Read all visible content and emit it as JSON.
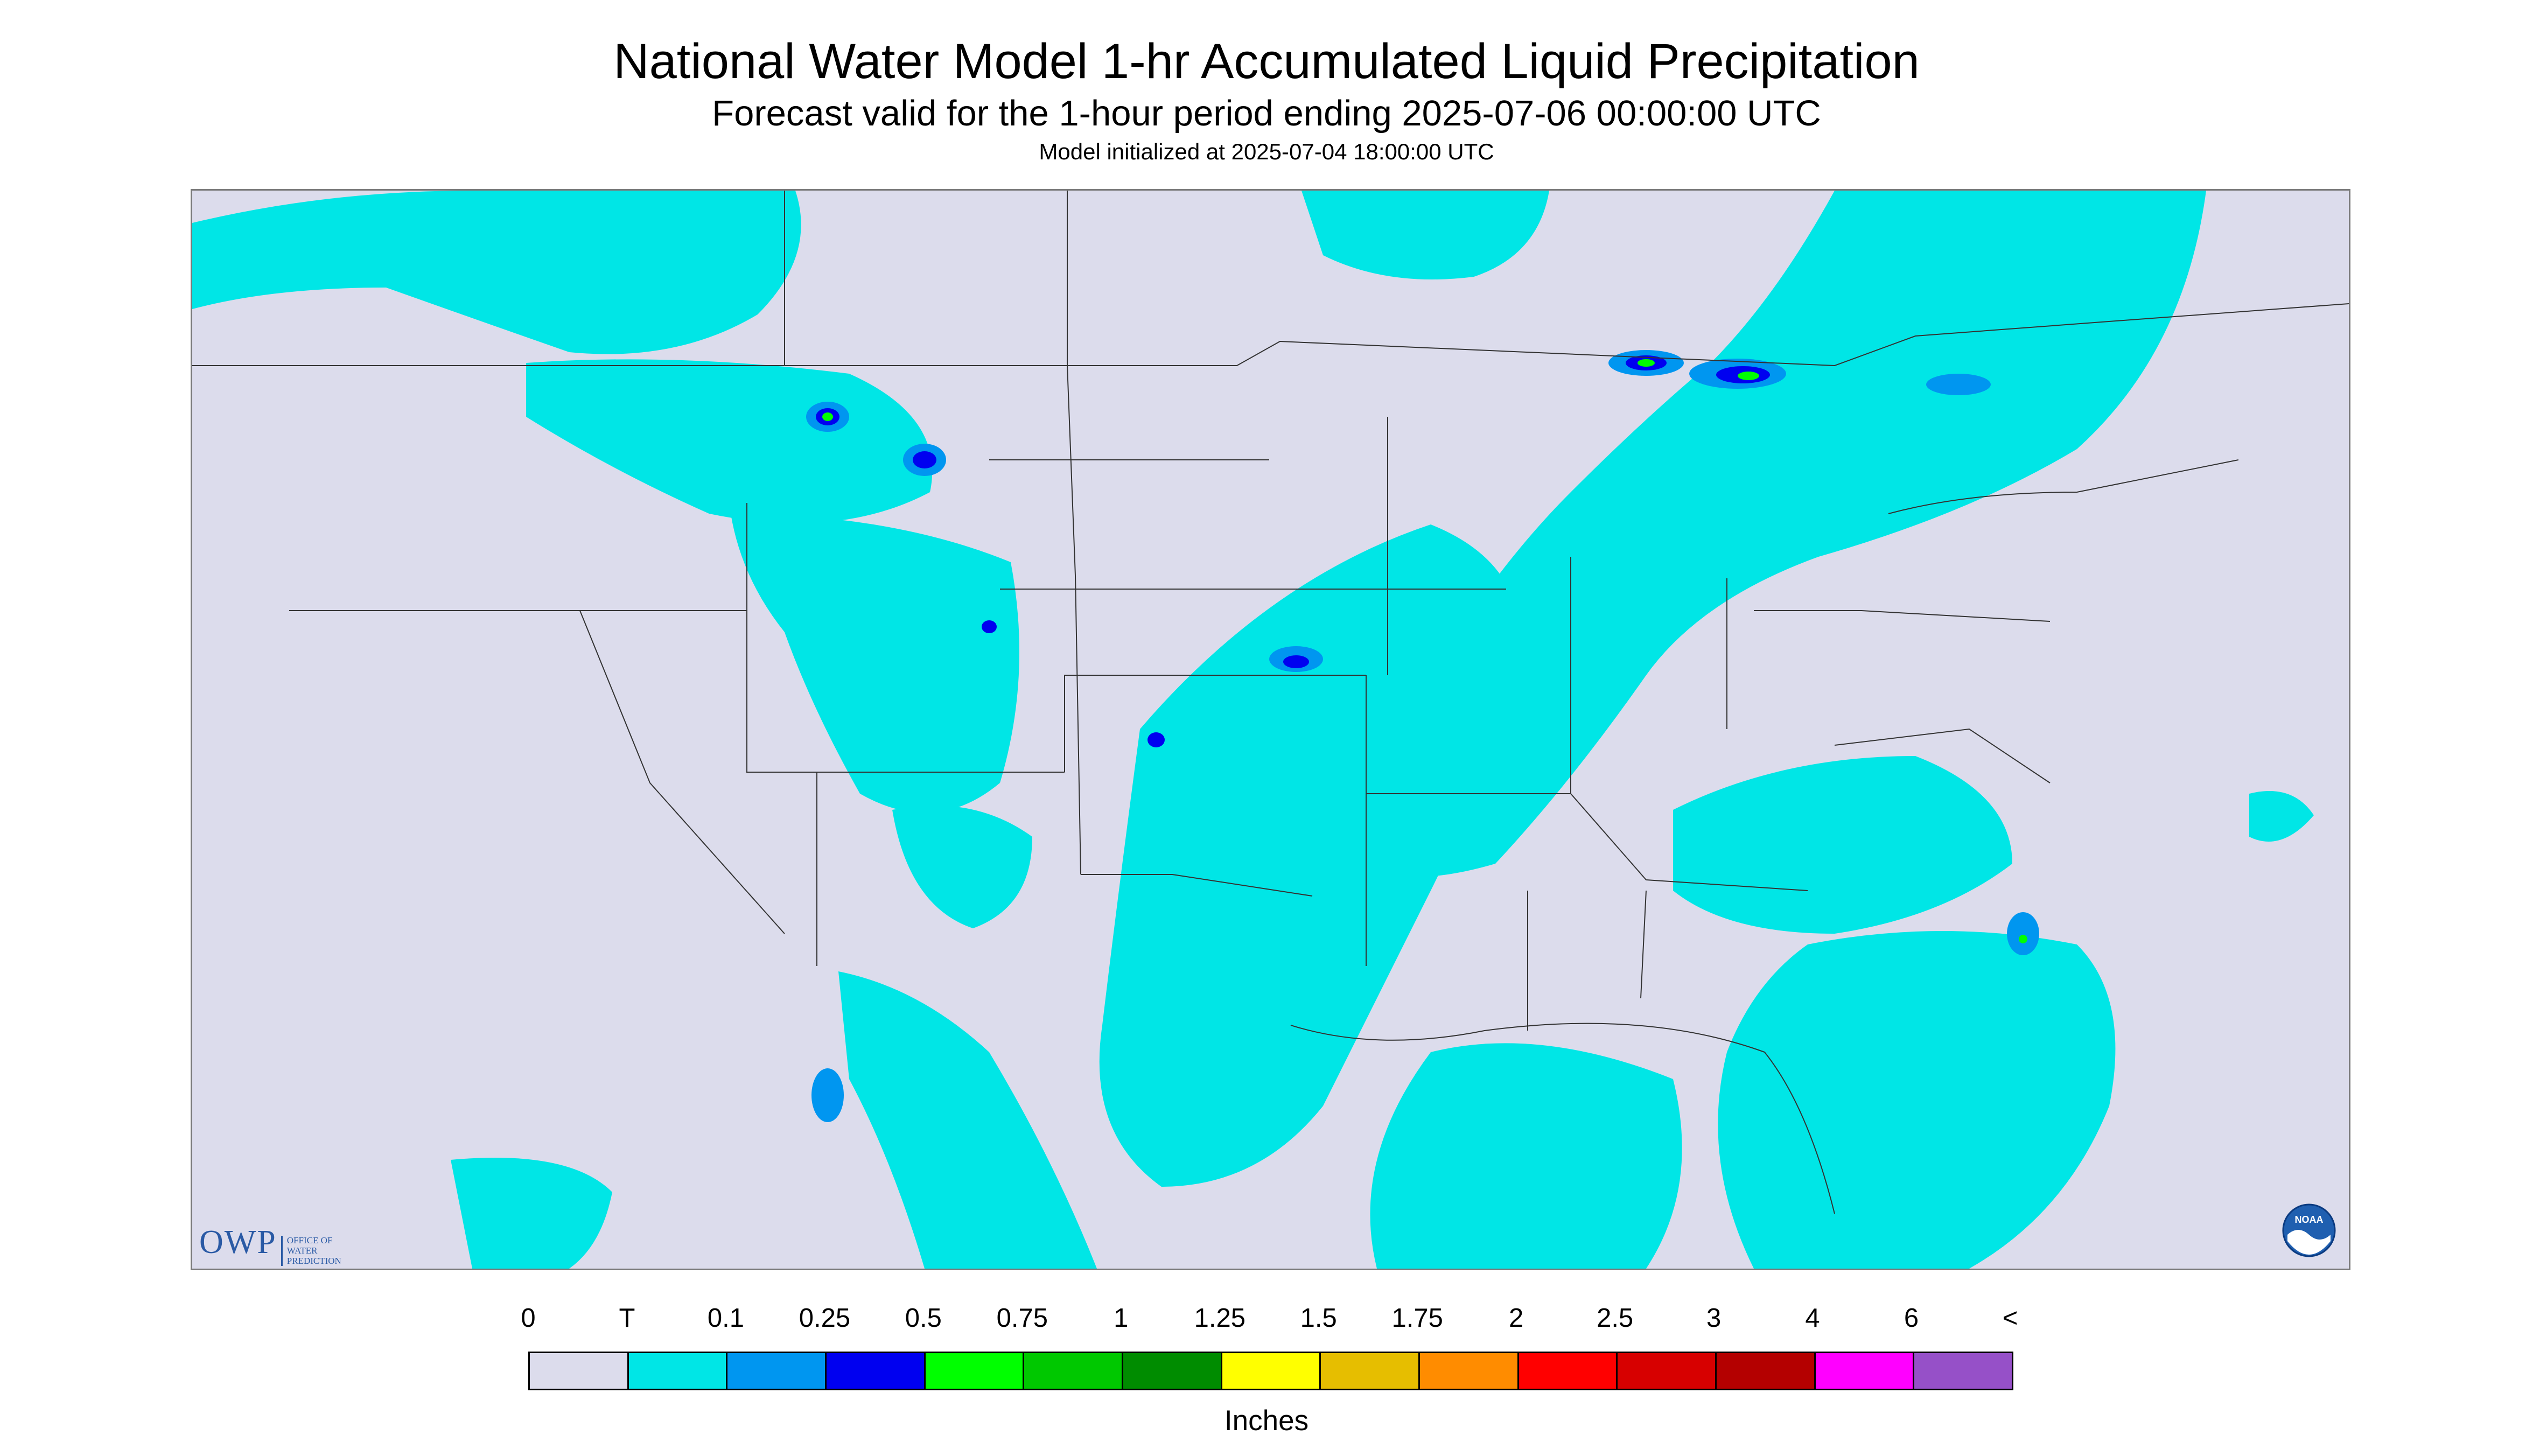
{
  "title": "National Water Model 1-hr Accumulated Liquid Precipitation",
  "subtitle": "Forecast valid for the 1-hour period ending 2025-07-06 00:00:00 UTC",
  "init_line": "Model initialized at 2025-07-04 18:00:00 UTC",
  "logo_owp": {
    "abbr": "OWP",
    "line1": "OFFICE OF",
    "line2": "WATER",
    "line3": "PREDICTION"
  },
  "logo_noaa": {
    "label": "NOAA"
  },
  "legend": {
    "labels": [
      "0",
      "T",
      "0.1",
      "0.25",
      "0.5",
      "0.75",
      "1",
      "1.25",
      "1.5",
      "1.75",
      "2",
      "2.5",
      "3",
      "4",
      "6",
      "<"
    ],
    "colors": [
      "#dcdcec",
      "#00e6e6",
      "#0096f0",
      "#0000f0",
      "#00ff00",
      "#00c800",
      "#008c00",
      "#ffff00",
      "#e6be00",
      "#ff8c00",
      "#ff0000",
      "#d70000",
      "#b40000",
      "#ff00ff",
      "#9650c8"
    ],
    "units": "Inches"
  },
  "colors": {
    "outside_domain": "#dcdcec",
    "no_precip": "#dcdcec",
    "trace": "#00e6e6",
    "light": "#0096f0",
    "moderate": "#0000f0",
    "heavy": "#00ff00",
    "boundary": "#333333"
  }
}
